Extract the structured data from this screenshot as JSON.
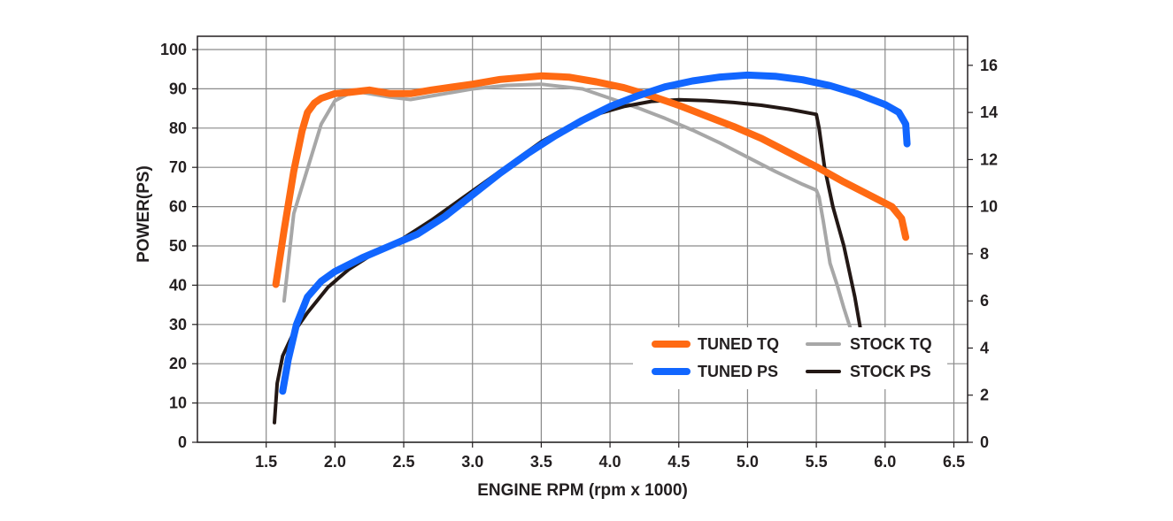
{
  "chart_data": {
    "type": "line",
    "title": "",
    "xlabel": "ENGINE RPM (rpm x 1000)",
    "ylabel": "POWER(PS)",
    "y2label": "",
    "xlim": [
      1.0,
      6.6
    ],
    "ylim": [
      0,
      100
    ],
    "y2lim": [
      0,
      16.67
    ],
    "xticks": [
      "1.5",
      "2.0",
      "2.5",
      "3.0",
      "3.5",
      "4.0",
      "4.5",
      "5.0",
      "5.5",
      "6.0",
      "6.5"
    ],
    "yticks": [
      "0",
      "10",
      "20",
      "30",
      "40",
      "50",
      "60",
      "70",
      "80",
      "90",
      "100"
    ],
    "y2ticks": [
      "0",
      "2",
      "4",
      "6",
      "8",
      "10",
      "12",
      "14",
      "16"
    ],
    "grid": true,
    "legend_position": "bottom-right",
    "series": [
      {
        "name": "TUNED TQ",
        "axis": "right",
        "color": "#ff6a13",
        "width": 8,
        "points": [
          [
            1.57,
            6.7
          ],
          [
            1.63,
            9.0
          ],
          [
            1.7,
            11.5
          ],
          [
            1.76,
            13.2
          ],
          [
            1.8,
            14.0
          ],
          [
            1.85,
            14.4
          ],
          [
            1.9,
            14.6
          ],
          [
            2.0,
            14.8
          ],
          [
            2.1,
            14.85
          ],
          [
            2.25,
            14.95
          ],
          [
            2.4,
            14.8
          ],
          [
            2.55,
            14.8
          ],
          [
            2.7,
            14.95
          ],
          [
            3.0,
            15.2
          ],
          [
            3.2,
            15.4
          ],
          [
            3.5,
            15.55
          ],
          [
            3.7,
            15.5
          ],
          [
            3.9,
            15.3
          ],
          [
            4.1,
            15.05
          ],
          [
            4.3,
            14.7
          ],
          [
            4.5,
            14.3
          ],
          [
            4.7,
            13.85
          ],
          [
            4.9,
            13.4
          ],
          [
            5.1,
            12.9
          ],
          [
            5.3,
            12.3
          ],
          [
            5.5,
            11.7
          ],
          [
            5.7,
            11.05
          ],
          [
            5.9,
            10.45
          ],
          [
            6.05,
            10.0
          ],
          [
            6.12,
            9.5
          ],
          [
            6.15,
            8.7
          ]
        ]
      },
      {
        "name": "TUNED PS",
        "axis": "left",
        "color": "#1166ff",
        "width": 8,
        "points": [
          [
            1.62,
            13
          ],
          [
            1.66,
            21
          ],
          [
            1.72,
            30
          ],
          [
            1.8,
            37
          ],
          [
            1.9,
            41
          ],
          [
            2.0,
            43.5
          ],
          [
            2.2,
            47
          ],
          [
            2.4,
            50
          ],
          [
            2.6,
            53
          ],
          [
            2.8,
            57.5
          ],
          [
            3.0,
            63
          ],
          [
            3.2,
            68.5
          ],
          [
            3.4,
            73.5
          ],
          [
            3.6,
            78
          ],
          [
            3.8,
            82
          ],
          [
            4.0,
            85.5
          ],
          [
            4.2,
            88.2
          ],
          [
            4.4,
            90.5
          ],
          [
            4.6,
            92
          ],
          [
            4.8,
            93
          ],
          [
            5.0,
            93.5
          ],
          [
            5.2,
            93.2
          ],
          [
            5.4,
            92.3
          ],
          [
            5.6,
            90.8
          ],
          [
            5.8,
            88.7
          ],
          [
            6.0,
            86
          ],
          [
            6.1,
            84
          ],
          [
            6.15,
            81
          ],
          [
            6.16,
            76
          ]
        ]
      },
      {
        "name": "STOCK TQ",
        "axis": "right",
        "color": "#a7a7a7",
        "width": 4,
        "points": [
          [
            1.63,
            6.0
          ],
          [
            1.7,
            9.7
          ],
          [
            1.8,
            11.6
          ],
          [
            1.9,
            13.5
          ],
          [
            2.0,
            14.5
          ],
          [
            2.1,
            14.8
          ],
          [
            2.2,
            14.85
          ],
          [
            2.4,
            14.65
          ],
          [
            2.55,
            14.55
          ],
          [
            2.7,
            14.7
          ],
          [
            3.0,
            15.0
          ],
          [
            3.25,
            15.15
          ],
          [
            3.5,
            15.2
          ],
          [
            3.8,
            15.0
          ],
          [
            4.0,
            14.6
          ],
          [
            4.2,
            14.2
          ],
          [
            4.4,
            13.75
          ],
          [
            4.6,
            13.25
          ],
          [
            4.8,
            12.7
          ],
          [
            5.0,
            12.1
          ],
          [
            5.2,
            11.5
          ],
          [
            5.4,
            10.95
          ],
          [
            5.5,
            10.7
          ],
          [
            5.52,
            10.4
          ],
          [
            5.55,
            9.4
          ],
          [
            5.6,
            7.6
          ],
          [
            5.65,
            6.7
          ],
          [
            5.7,
            5.7
          ],
          [
            5.75,
            4.8
          ]
        ]
      },
      {
        "name": "STOCK PS",
        "axis": "left",
        "color": "#231815",
        "width": 4,
        "points": [
          [
            1.56,
            5
          ],
          [
            1.58,
            15
          ],
          [
            1.62,
            22
          ],
          [
            1.7,
            28
          ],
          [
            1.8,
            33
          ],
          [
            1.95,
            39.5
          ],
          [
            2.1,
            44
          ],
          [
            2.3,
            48.5
          ],
          [
            2.5,
            52
          ],
          [
            2.7,
            56.5
          ],
          [
            2.9,
            61.5
          ],
          [
            3.1,
            66.5
          ],
          [
            3.3,
            71.5
          ],
          [
            3.5,
            76.5
          ],
          [
            3.7,
            80.5
          ],
          [
            3.9,
            83.5
          ],
          [
            4.1,
            85.5
          ],
          [
            4.3,
            86.8
          ],
          [
            4.5,
            87.2
          ],
          [
            4.7,
            87
          ],
          [
            4.9,
            86.5
          ],
          [
            5.1,
            85.8
          ],
          [
            5.3,
            84.8
          ],
          [
            5.5,
            83.5
          ],
          [
            5.52,
            80
          ],
          [
            5.56,
            70
          ],
          [
            5.62,
            60
          ],
          [
            5.7,
            50
          ],
          [
            5.78,
            37
          ],
          [
            5.82,
            29
          ]
        ]
      }
    ]
  }
}
